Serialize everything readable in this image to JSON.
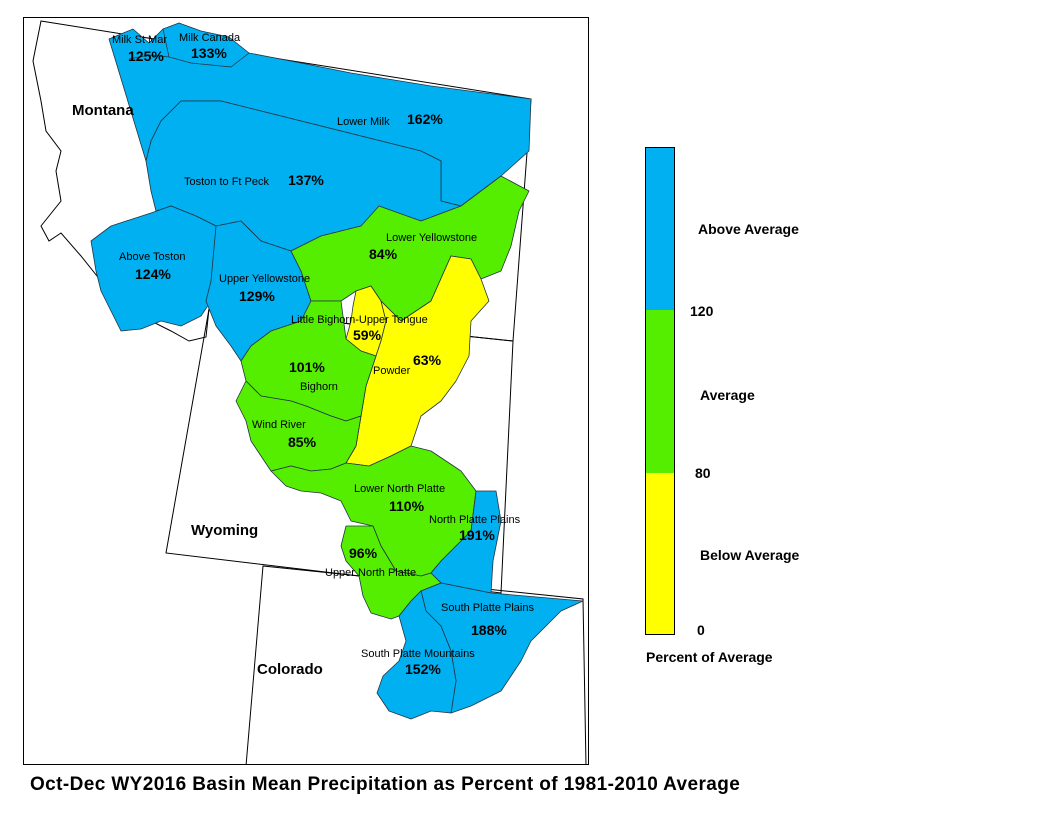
{
  "title": "Oct-Dec WY2016 Basin Mean Precipitation as Percent of 1981-2010 Average",
  "colors": {
    "above": "#00b0f0",
    "average": "#55ee00",
    "below": "#ffff00",
    "background": "#ffffff",
    "outline": "#000000"
  },
  "states": [
    {
      "name": "Montana"
    },
    {
      "name": "Wyoming"
    },
    {
      "name": "Colorado"
    }
  ],
  "basins": [
    {
      "name": "Milk St Mary",
      "display": "Milk St Mar",
      "pct": "125%",
      "category": "above"
    },
    {
      "name": "Milk Canada",
      "display": "Milk Canada",
      "pct": "133%",
      "category": "above"
    },
    {
      "name": "Lower Milk",
      "display": "Lower Milk",
      "pct": "162%",
      "category": "above"
    },
    {
      "name": "Toston to Ft Peck",
      "display": "Toston to Ft Peck",
      "pct": "137%",
      "category": "above"
    },
    {
      "name": "Above Toston",
      "display": "Above Toston",
      "pct": "124%",
      "category": "above"
    },
    {
      "name": "Upper Yellowstone",
      "display": "Upper Yellowstone",
      "pct": "129%",
      "category": "above"
    },
    {
      "name": "Lower Yellowstone",
      "display": "Lower Yellowstone",
      "pct": "84%",
      "category": "average"
    },
    {
      "name": "Little Bighorn-Upper Tongue",
      "display": "Little Bighorn-Upper Tongue",
      "pct": "59%",
      "category": "below"
    },
    {
      "name": "Powder",
      "display": "Powder",
      "pct": "63%",
      "category": "below"
    },
    {
      "name": "Bighorn",
      "display": "Bighorn",
      "pct": "101%",
      "category": "average"
    },
    {
      "name": "Wind River",
      "display": "Wind River",
      "pct": "85%",
      "category": "average"
    },
    {
      "name": "Lower North Platte",
      "display": "Lower North Platte",
      "pct": "110%",
      "category": "average"
    },
    {
      "name": "North Platte Plains",
      "display": "North Platte Plains",
      "pct": "191%",
      "category": "above"
    },
    {
      "name": "Upper North Platte",
      "display": "Upper North Platte",
      "pct": "96%",
      "category": "average"
    },
    {
      "name": "South Platte Plains",
      "display": "South Platte Plains",
      "pct": "188%",
      "category": "above"
    },
    {
      "name": "South Platte Mountains",
      "display": "South Platte Mountains",
      "pct": "152%",
      "category": "above"
    }
  ],
  "legend": {
    "classes": [
      {
        "label": "Above Average",
        "category": "above"
      },
      {
        "label": "Average",
        "category": "average"
      },
      {
        "label": "Below Average",
        "category": "below"
      }
    ],
    "breaks": [
      "120",
      "80",
      "0"
    ],
    "caption": "Percent of Average"
  }
}
